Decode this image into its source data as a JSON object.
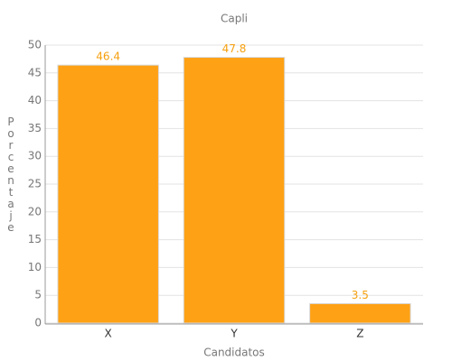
{
  "chart_data": {
    "type": "bar",
    "title": "Capli",
    "x_label": "Candidatos",
    "y_label": "Porcentaje",
    "categories": [
      "X",
      "Y",
      "Z"
    ],
    "values": [
      46.4,
      47.8,
      3.5
    ],
    "color": "#ffa114",
    "ylim": [
      0,
      50
    ],
    "yticks": [
      0,
      5,
      10,
      15,
      20,
      25,
      30,
      35,
      40,
      45,
      50
    ],
    "grid": true
  }
}
